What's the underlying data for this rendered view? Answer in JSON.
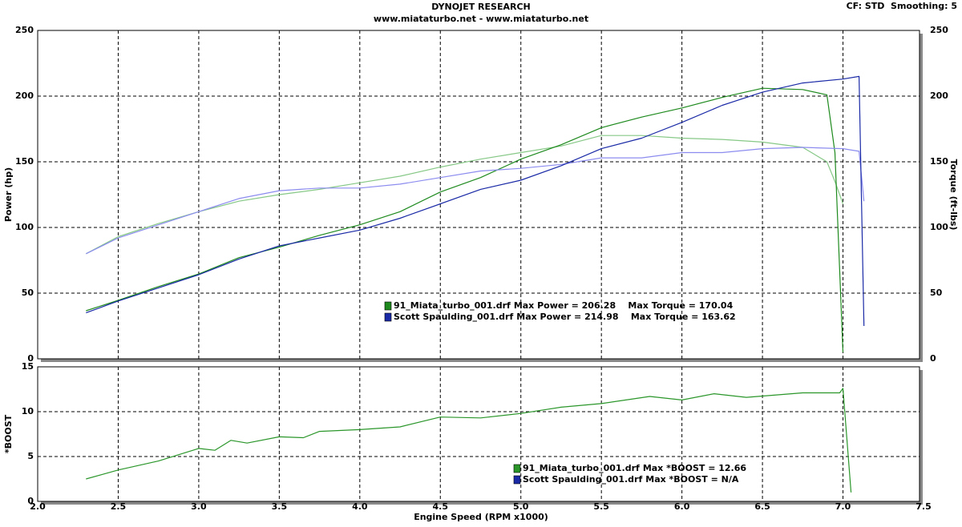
{
  "header": {
    "title": "DYNOJET RESEARCH",
    "subtitle": "www.miataturbo.net - www.miataturbo.net",
    "settings": "CF: STD  Smoothing: 5"
  },
  "chart_data": [
    {
      "type": "line",
      "ylabel": "Power (hp)",
      "y2label": "Torque (ft-lbs)",
      "xlim": [
        2,
        7.5
      ],
      "xticks": [
        2.5,
        3,
        3.5,
        4,
        4.5,
        5,
        5.5,
        6,
        6.5,
        7
      ],
      "ylim": [
        0,
        250
      ],
      "yticks": [
        0,
        50,
        100,
        150,
        200,
        250
      ],
      "y2lim": [
        0,
        250
      ],
      "y2ticks": [
        0,
        50,
        100,
        150,
        200,
        250
      ],
      "grid": true,
      "series": [
        {
          "name": "91_Miata_turbo_001.drf",
          "stats": "Max Power = 206.28    Max Torque = 170.04",
          "color": "#1e8a1e",
          "torque_color": "#86c886",
          "x": [
            2.3,
            2.5,
            2.75,
            3,
            3.25,
            3.5,
            3.75,
            4,
            4.25,
            4.5,
            4.75,
            5,
            5.25,
            5.5,
            5.75,
            6,
            6.25,
            6.5,
            6.75,
            6.9,
            6.95,
            7
          ],
          "power": [
            36.6,
            44.5,
            55,
            64.6,
            77,
            85,
            94,
            102,
            112,
            127,
            138,
            152,
            163,
            176,
            184,
            191,
            199,
            206,
            205,
            201,
            157,
            5
          ],
          "torque": [
            80,
            93,
            103,
            112,
            120,
            125,
            129,
            134,
            139,
            146,
            152,
            157,
            162,
            170,
            170,
            168,
            167,
            165,
            161,
            150,
            135,
            118
          ]
        },
        {
          "name": "Scott Spaulding_001.drf",
          "stats": "Max Power = 214.98    Max Torque = 163.62",
          "color": "#1a2aa6",
          "torque_color": "#8c8cf0",
          "x": [
            2.3,
            2.5,
            2.75,
            3,
            3.25,
            3.5,
            3.75,
            4,
            4.25,
            4.5,
            4.75,
            5,
            5.25,
            5.5,
            5.75,
            6,
            6.25,
            6.5,
            6.75,
            7,
            7.1,
            7.13
          ],
          "power": [
            35,
            44,
            54,
            64,
            76,
            86,
            92,
            98,
            107,
            118,
            129,
            136,
            147,
            160,
            168,
            180,
            193,
            203,
            210,
            213,
            215,
            25
          ],
          "torque": [
            80,
            92,
            102,
            112,
            122,
            128,
            130,
            130,
            133,
            138,
            143,
            145,
            148,
            153,
            153,
            157,
            157,
            160,
            161,
            160,
            158,
            120
          ]
        }
      ]
    },
    {
      "type": "line",
      "ylabel": "*BOOST",
      "xlabel": "Engine Speed (RPM x1000)",
      "xlim": [
        2,
        7.5
      ],
      "xticks": [
        {
          "value": 2,
          "label": "2.0"
        },
        {
          "value": 2.5,
          "label": "2.5"
        },
        {
          "value": 3,
          "label": "3.0"
        },
        {
          "value": 3.5,
          "label": "3.5"
        },
        {
          "value": 4,
          "label": "4.0"
        },
        {
          "value": 4.5,
          "label": "4.5"
        },
        {
          "value": 5,
          "label": "5.0"
        },
        {
          "value": 5.5,
          "label": "5.5"
        },
        {
          "value": 6,
          "label": "6.0"
        },
        {
          "value": 6.5,
          "label": "6.5"
        },
        {
          "value": 7,
          "label": "7.0"
        },
        {
          "value": 7.5,
          "label": "7.5"
        }
      ],
      "ylim": [
        0,
        15
      ],
      "yticks": [
        0,
        5,
        10,
        15
      ],
      "grid": true,
      "series": [
        {
          "name": "91_Miata_turbo_001.drf",
          "stats": "Max *BOOST = 12.66",
          "color": "#2a962a",
          "x": [
            2.3,
            2.4,
            2.5,
            2.75,
            3,
            3.1,
            3.2,
            3.3,
            3.5,
            3.65,
            3.75,
            4,
            4.25,
            4.5,
            4.75,
            5,
            5.25,
            5.5,
            5.8,
            6,
            6.2,
            6.4,
            6.75,
            6.98,
            7,
            7.05
          ],
          "values": [
            2.5,
            3,
            3.5,
            4.5,
            5.9,
            5.7,
            6.8,
            6.5,
            7.2,
            7.1,
            7.8,
            8,
            8.3,
            9.4,
            9.3,
            9.8,
            10.5,
            10.9,
            11.7,
            11.3,
            12,
            11.6,
            12.1,
            12.1,
            12.6,
            1
          ]
        },
        {
          "name": "Scott Spaulding_001.drf",
          "stats": "Max *BOOST = N/A",
          "color": "#1a2aa6"
        }
      ]
    }
  ]
}
